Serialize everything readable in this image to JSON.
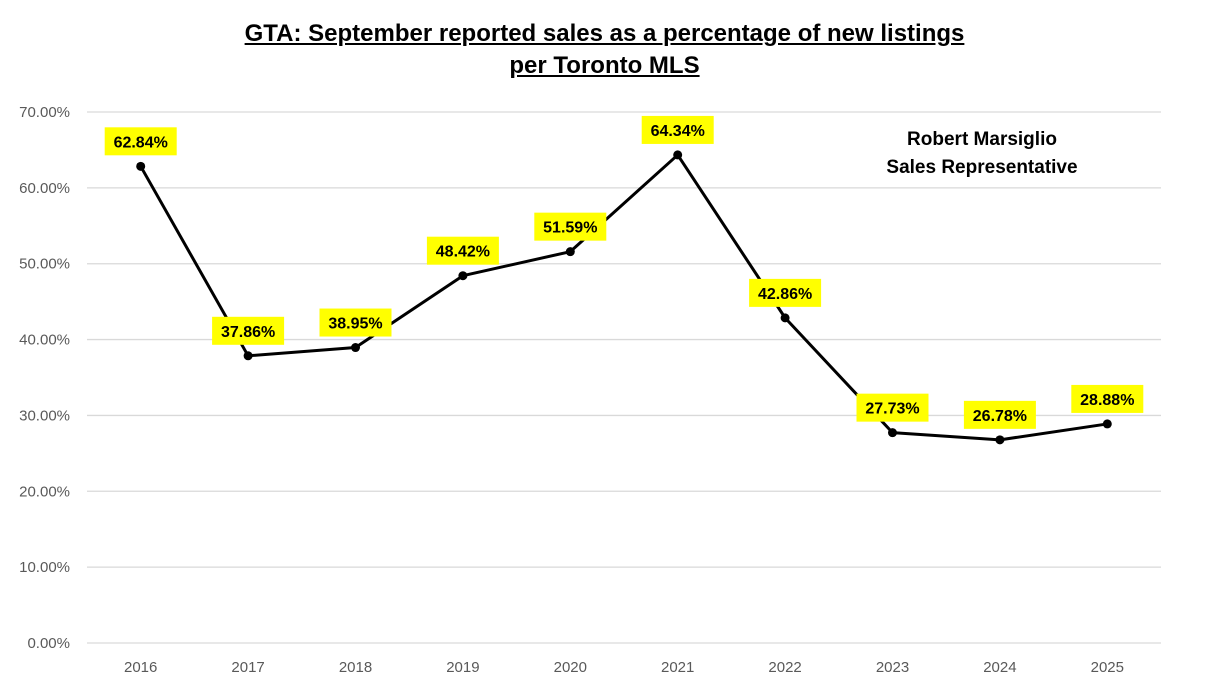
{
  "chart_data": {
    "type": "line",
    "title": "GTA: September reported sales as a percentage of new listings",
    "subtitle": "per Toronto MLS",
    "xlabel": "",
    "ylabel": "",
    "categories": [
      "2016",
      "2017",
      "2018",
      "2019",
      "2020",
      "2021",
      "2022",
      "2023",
      "2024",
      "2025"
    ],
    "series": [
      {
        "values": [
          62.84,
          37.86,
          38.95,
          48.42,
          51.59,
          64.34,
          42.86,
          27.73,
          26.78,
          28.88
        ]
      }
    ],
    "data_labels": [
      "62.84%",
      "37.86%",
      "38.95%",
      "48.42%",
      "51.59%",
      "64.34%",
      "42.86%",
      "27.73%",
      "26.78%",
      "28.88%"
    ],
    "ylim": [
      0,
      70
    ],
    "yticks": [
      0,
      10,
      20,
      30,
      40,
      50,
      60,
      70
    ],
    "ytick_labels": [
      "0.00%",
      "10.00%",
      "20.00%",
      "30.00%",
      "40.00%",
      "50.00%",
      "60.00%",
      "70.00%"
    ],
    "grid": true,
    "legend": "none",
    "annotation": {
      "line1": "Robert Marsiglio",
      "line2": "Sales Representative"
    },
    "colors": {
      "line": "#000000",
      "label_bg": "#ffff00",
      "grid": "#d9d9d9",
      "axis_text": "#595959"
    }
  }
}
